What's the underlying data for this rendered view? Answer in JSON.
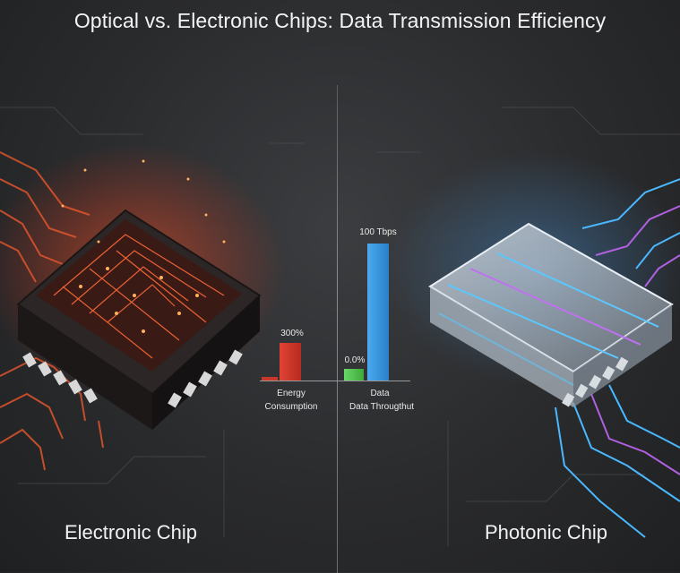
{
  "title": "Optical vs. Electronic Chips: Data Transmission Efficiency",
  "captions": {
    "left": "Electronic Chip",
    "right": "Photonic Chip"
  },
  "chart": {
    "energy_value_label": "300%",
    "energy_category_line1": "Energy",
    "energy_category_line2": "Consumption",
    "throughput_low_label": "0.0%",
    "throughput_high_label": "100 Tbps",
    "throughput_category_line1": "Data",
    "throughput_category_line2": "Data Througthut"
  },
  "colors": {
    "electronic": "#e03a2c",
    "photonic_blue": "#3b9fe6",
    "photonic_green": "#5cc95a",
    "accent_purple": "#b060e0"
  }
}
